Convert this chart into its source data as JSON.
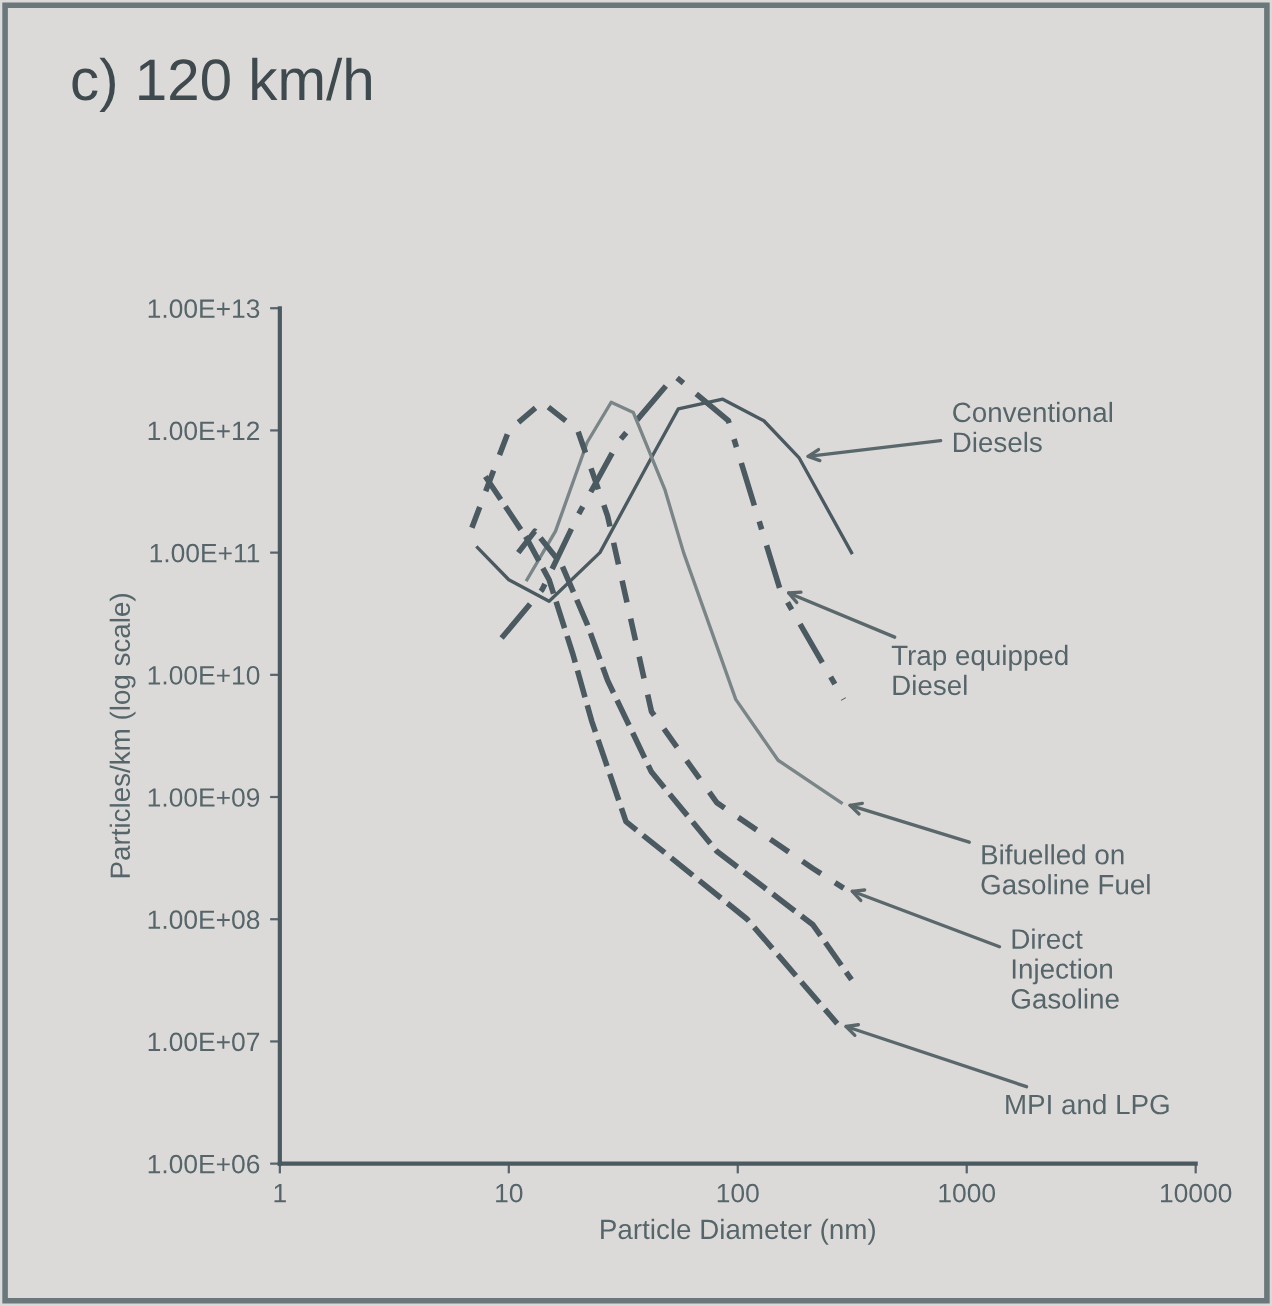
{
  "chart_data": {
    "type": "line",
    "title": "c) 120 km/h",
    "xlabel": "Particle Diameter (nm)",
    "ylabel": "Particles/km (log scale)",
    "log": "xy",
    "grid": false,
    "legend": false,
    "marker": "none",
    "xlim": [
      1,
      10000
    ],
    "xticks": [
      1,
      10,
      100,
      1000,
      10000
    ],
    "ylim": [
      1000000,
      10000000000000
    ],
    "yticks": [
      {
        "value": 1000000,
        "label": "1.00E+06"
      },
      {
        "value": 10000000,
        "label": "1.00E+07"
      },
      {
        "value": 100000000,
        "label": "1.00E+08"
      },
      {
        "value": 1000000000,
        "label": "1.00E+09"
      },
      {
        "value": 10000000000,
        "label": "1.00E+10"
      },
      {
        "value": 100000000000,
        "label": "1.00E+11"
      },
      {
        "value": 1000000000000,
        "label": "1.00E+12"
      },
      {
        "value": 10000000000000,
        "label": "1.00E+13"
      }
    ],
    "series": [
      {
        "name": "Conventional Diesels",
        "color": "#4a5a60",
        "line_style": "solid",
        "x": [
          7.3,
          10,
          15,
          25,
          42,
          55,
          86,
          130,
          185,
          314
        ],
        "values": [
          110000000000.0,
          60000000000.0,
          40000000000.0,
          100000000000.0,
          600000000000.0,
          1500000000000.0,
          1800000000000.0,
          1200000000000.0,
          600000000000.0,
          100000000000.0
        ]
      },
      {
        "name": "Trap equipped Diesel",
        "color": "#4a5a60",
        "line_style": "dashdot",
        "x": [
          9.3,
          14,
          20,
          30,
          53,
          91,
          153,
          290
        ],
        "values": [
          20000000000.0,
          50000000000.0,
          200000000000.0,
          800000000000.0,
          2800000000000.0,
          1200000000000.0,
          50000000000.0,
          6300000000.0
        ]
      },
      {
        "name": "Bifuelled on Gasoline Fuel",
        "color": "#7a8588",
        "line_style": "solid",
        "x": [
          12,
          16,
          22,
          28,
          35,
          48,
          58,
          98,
          150,
          283
        ],
        "values": [
          60000000000.0,
          150000000000.0,
          800000000000.0,
          1700000000000.0,
          1400000000000.0,
          330000000000.0,
          100000000000.0,
          6300000000.0,
          2000000000.0,
          900000000.0
        ]
      },
      {
        "name": "Direct Injection Gasoline",
        "color": "#4a5a60",
        "line_style": "dotted",
        "x": [
          6.9,
          10,
          14,
          20,
          27,
          42,
          81,
          213,
          290
        ],
        "values": [
          160000000000.0,
          1000000000000.0,
          1700000000000.0,
          1000000000000.0,
          200000000000.0,
          5000000000.0,
          900000000.0,
          260000000.0,
          180000000.0
        ]
      },
      {
        "name": "MPI and LPG",
        "color": "#4a5a60",
        "line_style": "dashed",
        "x": [
          7.9,
          12,
          15,
          19,
          23,
          32.5,
          60,
          110,
          272
        ],
        "values": [
          420000000000.0,
          130000000000.0,
          60000000000.0,
          15000000000.0,
          4200000000.0,
          630000000.0,
          250000000.0,
          100000000.0,
          14000000.0
        ]
      },
      {
        "color": "#4a5a60",
        "line_style": "dashed",
        "x": [
          11,
          13,
          17,
          22,
          27,
          42,
          81,
          213,
          314
        ],
        "values": [
          100000000000.0,
          150000000000.0,
          80000000000.0,
          26000000000.0,
          9000000000.0,
          1600000000.0,
          360000000.0,
          90000000.0,
          32000000.0
        ]
      }
    ]
  }
}
